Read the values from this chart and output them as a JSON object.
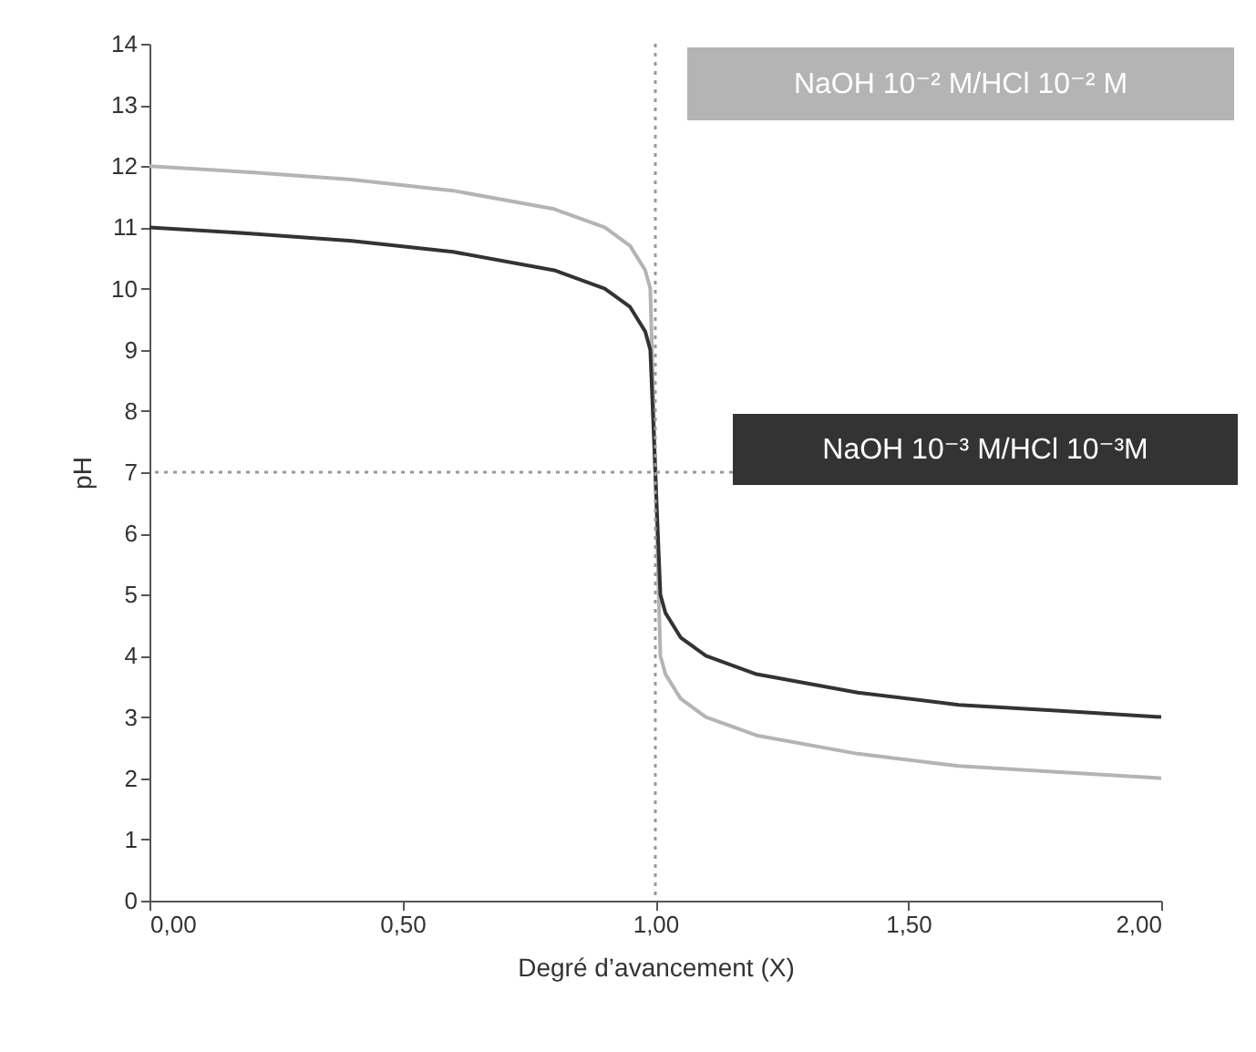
{
  "chart_data": {
    "type": "line",
    "xlabel": "Degré d’avancement (X)",
    "ylabel": "pH",
    "x": [
      0,
      0.2,
      0.4,
      0.6,
      0.8,
      0.9,
      0.95,
      0.98,
      0.99,
      1.0,
      1.01,
      1.02,
      1.05,
      1.1,
      1.2,
      1.4,
      1.6,
      1.8,
      2.0
    ],
    "series": [
      {
        "name": "NaOH 10⁻² M/HCl 10⁻² M",
        "color": "#b4b4b4",
        "values": [
          12.0,
          11.9,
          11.78,
          11.6,
          11.3,
          11.0,
          10.7,
          10.3,
          10.0,
          7.0,
          4.0,
          3.7,
          3.3,
          3.0,
          2.7,
          2.4,
          2.2,
          2.1,
          2.0
        ]
      },
      {
        "name": "NaOH 10⁻³ M/HCl 10⁻³M",
        "color": "#333333",
        "values": [
          11.0,
          10.9,
          10.78,
          10.6,
          10.3,
          10.0,
          9.7,
          9.3,
          9.0,
          7.0,
          5.0,
          4.7,
          4.3,
          4.0,
          3.7,
          3.4,
          3.2,
          3.1,
          3.0
        ]
      }
    ],
    "xlim": [
      0,
      2
    ],
    "xticks": [
      {
        "value": 0,
        "label": "0,00"
      },
      {
        "value": 0.5,
        "label": "0,50"
      },
      {
        "value": 1,
        "label": "1,00"
      },
      {
        "value": 1.5,
        "label": "1,50"
      },
      {
        "value": 2,
        "label": "2,00"
      }
    ],
    "ylim": [
      0,
      14
    ],
    "yticks": [
      0,
      1,
      2,
      3,
      4,
      5,
      6,
      7,
      8,
      9,
      10,
      11,
      12,
      13,
      14
    ],
    "ref_lines": [
      {
        "axis": "y",
        "value": 7,
        "color": "#999999",
        "line_style": "dotted"
      },
      {
        "axis": "x",
        "value": 1,
        "color": "#999999",
        "line_style": "dotted"
      }
    ],
    "grid": false,
    "legend": false,
    "marker": "none",
    "line_style": "solid"
  }
}
